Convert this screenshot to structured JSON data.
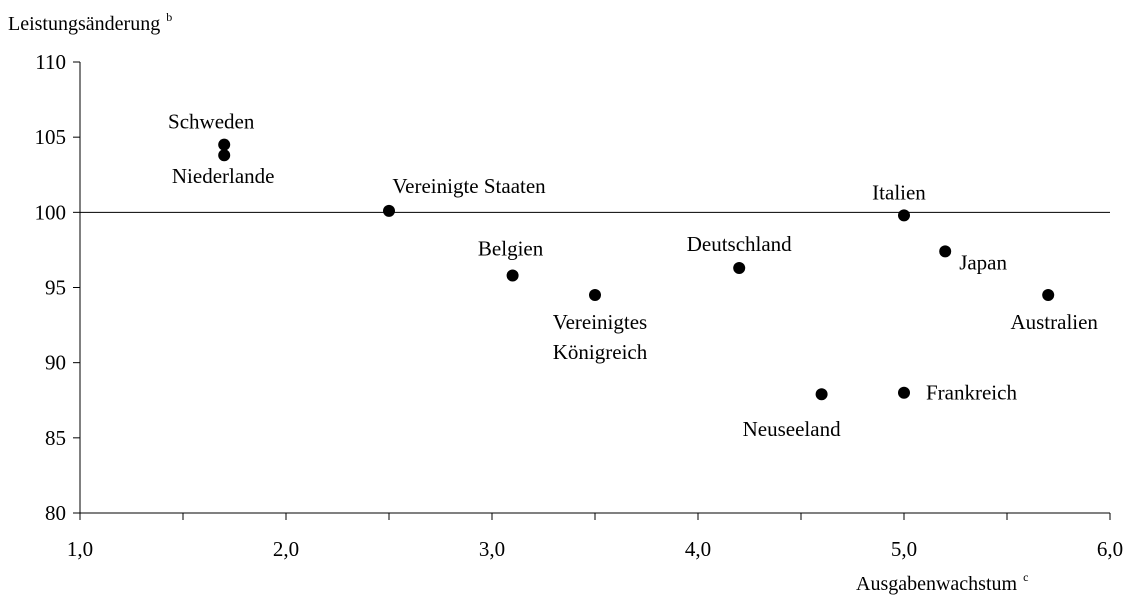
{
  "chart_data": {
    "type": "scatter",
    "ylabel": "Leistungsänderung",
    "ylabel_sup": "b",
    "xlabel": "Ausgabenwachstum",
    "xlabel_sup": "c",
    "xlim": [
      1.0,
      6.0
    ],
    "ylim": [
      80,
      110
    ],
    "x_ticks": [
      "1,0",
      "2,0",
      "3,0",
      "4,0",
      "5,0",
      "6,0"
    ],
    "y_ticks": [
      "80",
      "85",
      "90",
      "95",
      "100",
      "105",
      "110"
    ],
    "reference_line": {
      "y": 100
    },
    "grid": false,
    "points": [
      {
        "label": "Schweden",
        "x": 1.7,
        "y": 104.5
      },
      {
        "label": "Niederlande",
        "x": 1.7,
        "y": 103.8
      },
      {
        "label": "Vereinigte Staaten",
        "x": 2.5,
        "y": 100.1
      },
      {
        "label": "Belgien",
        "x": 3.1,
        "y": 95.8
      },
      {
        "label": "Vereinigtes Königreich",
        "x": 3.5,
        "y": 94.5
      },
      {
        "label": "Deutschland",
        "x": 4.2,
        "y": 96.3
      },
      {
        "label": "Neuseeland",
        "x": 4.6,
        "y": 87.9
      },
      {
        "label": "Italien",
        "x": 5.0,
        "y": 99.8
      },
      {
        "label": "Frankreich",
        "x": 5.0,
        "y": 88.0
      },
      {
        "label": "Japan",
        "x": 5.2,
        "y": 97.4
      },
      {
        "label": "Australien",
        "x": 5.7,
        "y": 94.5
      }
    ]
  }
}
